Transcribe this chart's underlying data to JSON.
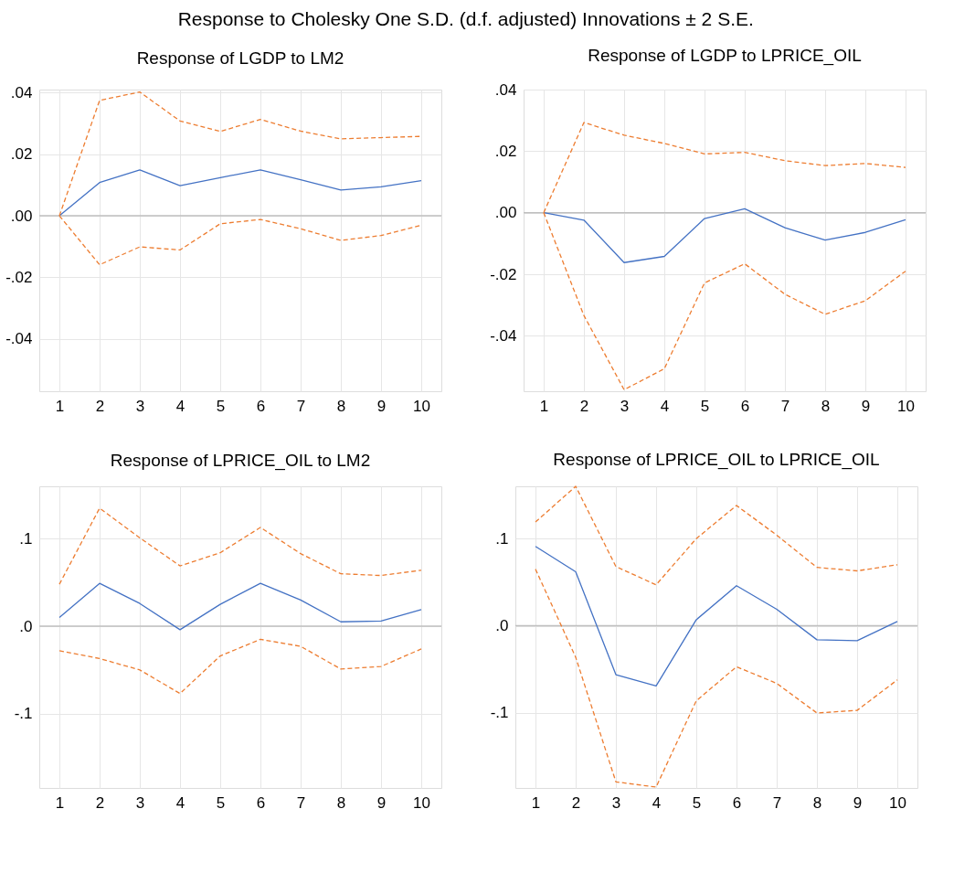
{
  "chart_data": [
    {
      "type": "other",
      "title": "Response to Cholesky One S.D. (d.f. adjusted) Innovations ± 2 S.E."
    },
    {
      "type": "line",
      "title": "Response of LGDP to LM2",
      "categories": [
        "1",
        "2",
        "3",
        "4",
        "5",
        "6",
        "7",
        "8",
        "9",
        "10"
      ],
      "ylim": [
        -0.057,
        0.041
      ],
      "yticks": [
        {
          "value": -0.04,
          "label": "-.04"
        },
        {
          "value": -0.02,
          "label": "-.02"
        },
        {
          "value": 0,
          "label": ".00"
        },
        {
          "value": 0.02,
          "label": ".02"
        },
        {
          "value": 0.04,
          "label": ".04"
        }
      ],
      "grid": true,
      "ref_lines": [
        {
          "axis": "y",
          "value": 0,
          "color": "#bfbfbf"
        }
      ],
      "series": [
        {
          "color": "#4472c4",
          "line_style": "solid",
          "values": [
            0,
            0.0108,
            0.0149,
            0.0098,
            0.0124,
            0.0149,
            0.0117,
            0.0084,
            0.0094,
            0.0114
          ]
        },
        {
          "color": "#ed7d31",
          "line_style": "dashed",
          "values": [
            0,
            0.0375,
            0.0402,
            0.0308,
            0.0274,
            0.0313,
            0.0275,
            0.025,
            0.0254,
            0.0258
          ]
        },
        {
          "color": "#ed7d31",
          "line_style": "dashed",
          "values": [
            0,
            -0.0159,
            -0.0101,
            -0.0111,
            -0.0026,
            -0.0012,
            -0.0042,
            -0.008,
            -0.0064,
            -0.0031
          ]
        }
      ]
    },
    {
      "type": "line",
      "title": "Response of LGDP to LPRICE_OIL",
      "categories": [
        "1",
        "2",
        "3",
        "4",
        "5",
        "6",
        "7",
        "8",
        "9",
        "10"
      ],
      "ylim": [
        -0.058,
        0.04
      ],
      "yticks": [
        {
          "value": -0.04,
          "label": "-.04"
        },
        {
          "value": -0.02,
          "label": "-.02"
        },
        {
          "value": 0,
          "label": ".00"
        },
        {
          "value": 0.02,
          "label": ".02"
        },
        {
          "value": 0.04,
          "label": ".04"
        }
      ],
      "grid": true,
      "ref_lines": [
        {
          "axis": "y",
          "value": 0,
          "color": "#bfbfbf"
        }
      ],
      "series": [
        {
          "color": "#4472c4",
          "line_style": "solid",
          "values": [
            0,
            -0.0024,
            -0.0162,
            -0.0142,
            -0.0019,
            0.0013,
            -0.0049,
            -0.0089,
            -0.0064,
            -0.0023
          ]
        },
        {
          "color": "#ed7d31",
          "line_style": "dashed",
          "values": [
            0,
            0.0293,
            0.0252,
            0.0225,
            0.0191,
            0.0196,
            0.0169,
            0.0153,
            0.016,
            0.0147
          ]
        },
        {
          "color": "#ed7d31",
          "line_style": "dashed",
          "values": [
            0,
            -0.0334,
            -0.0575,
            -0.0507,
            -0.0228,
            -0.0166,
            -0.0265,
            -0.033,
            -0.0286,
            -0.019
          ]
        }
      ]
    },
    {
      "type": "line",
      "title": "Response of LPRICE_OIL to LM2",
      "categories": [
        "1",
        "2",
        "3",
        "4",
        "5",
        "6",
        "7",
        "8",
        "9",
        "10"
      ],
      "ylim": [
        -0.185,
        0.16
      ],
      "yticks": [
        {
          "value": -0.1,
          "label": "-.1"
        },
        {
          "value": 0,
          "label": ".0"
        },
        {
          "value": 0.1,
          "label": ".1"
        }
      ],
      "grid": true,
      "ref_lines": [
        {
          "axis": "y",
          "value": 0,
          "color": "#bfbfbf"
        }
      ],
      "series": [
        {
          "color": "#4472c4",
          "line_style": "solid",
          "values": [
            0.01,
            0.049,
            0.026,
            -0.004,
            0.025,
            0.049,
            0.03,
            0.005,
            0.006,
            0.019
          ]
        },
        {
          "color": "#ed7d31",
          "line_style": "dashed",
          "values": [
            0.048,
            0.135,
            0.101,
            0.069,
            0.084,
            0.113,
            0.083,
            0.06,
            0.058,
            0.064
          ]
        },
        {
          "color": "#ed7d31",
          "line_style": "dashed",
          "values": [
            -0.028,
            -0.037,
            -0.05,
            -0.077,
            -0.034,
            -0.015,
            -0.023,
            -0.049,
            -0.046,
            -0.026
          ]
        }
      ]
    },
    {
      "type": "line",
      "title": "Response of LPRICE_OIL to LPRICE_OIL",
      "categories": [
        "1",
        "2",
        "3",
        "4",
        "5",
        "6",
        "7",
        "8",
        "9",
        "10"
      ],
      "ylim": [
        -0.186,
        0.16
      ],
      "yticks": [
        {
          "value": -0.1,
          "label": "-.1"
        },
        {
          "value": 0,
          "label": ".0"
        },
        {
          "value": 0.1,
          "label": ".1"
        }
      ],
      "grid": true,
      "ref_lines": [
        {
          "axis": "y",
          "value": 0,
          "color": "#bfbfbf"
        }
      ],
      "series": [
        {
          "color": "#4472c4",
          "line_style": "solid",
          "values": [
            0.091,
            0.062,
            -0.056,
            -0.069,
            0.007,
            0.046,
            0.019,
            -0.016,
            -0.017,
            0.005
          ]
        },
        {
          "color": "#ed7d31",
          "line_style": "dashed",
          "values": [
            0.119,
            0.16,
            0.068,
            0.047,
            0.1,
            0.138,
            0.104,
            0.067,
            0.063,
            0.07
          ]
        },
        {
          "color": "#ed7d31",
          "line_style": "dashed",
          "values": [
            0.065,
            -0.036,
            -0.179,
            -0.185,
            -0.086,
            -0.047,
            -0.066,
            -0.1,
            -0.097,
            -0.062
          ]
        }
      ]
    }
  ]
}
